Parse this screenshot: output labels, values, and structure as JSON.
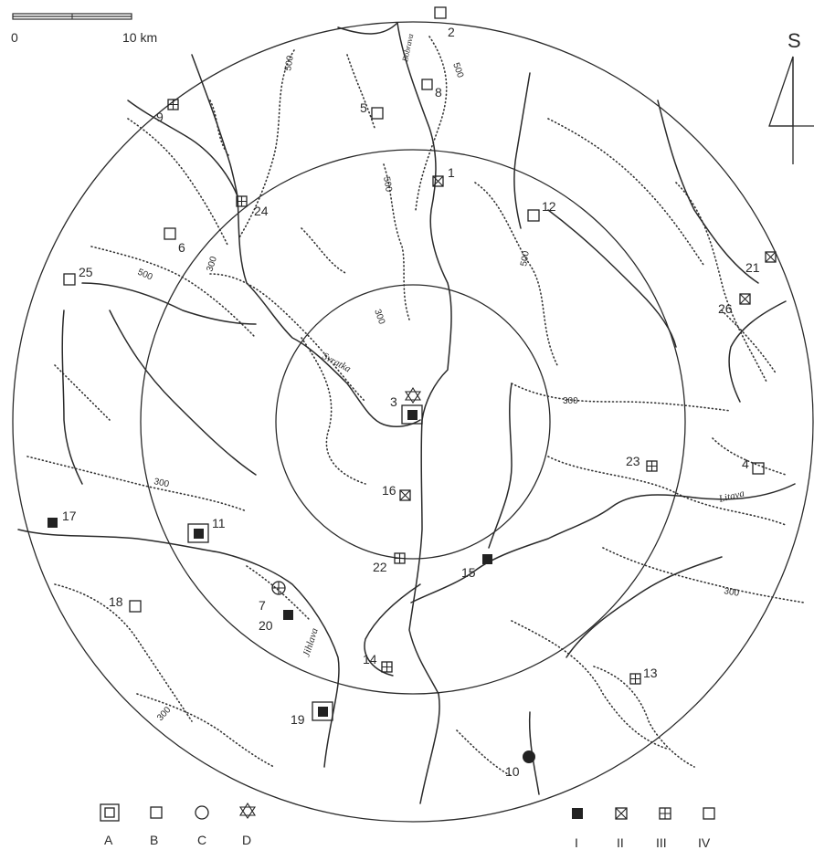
{
  "scale": {
    "zero_label": "0",
    "end_label": "10 km"
  },
  "north_label": "S",
  "rivers": {
    "svratka": "Svratka",
    "jihlava": "Jihlava",
    "litava": "Litava",
    "bobrava": "Bobrava"
  },
  "contour_labels": [
    "500",
    "500",
    "500",
    "500",
    "300",
    "500",
    "300",
    "300",
    "300",
    "300",
    "300"
  ],
  "sites": [
    {
      "num": "1",
      "cat": "II"
    },
    {
      "num": "2",
      "cat": "IV"
    },
    {
      "num": "3",
      "cat": "I",
      "type": "A",
      "extra": "D"
    },
    {
      "num": "4",
      "cat": "IV"
    },
    {
      "num": "5",
      "cat": "IV"
    },
    {
      "num": "6",
      "cat": "IV"
    },
    {
      "num": "7",
      "cat": "III",
      "type": "C"
    },
    {
      "num": "8",
      "cat": "IV"
    },
    {
      "num": "9",
      "cat": "III"
    },
    {
      "num": "10",
      "cat": "dot"
    },
    {
      "num": "11",
      "cat": "I",
      "type": "A"
    },
    {
      "num": "12",
      "cat": "IV"
    },
    {
      "num": "13",
      "cat": "III"
    },
    {
      "num": "14",
      "cat": "III"
    },
    {
      "num": "15",
      "cat": "I"
    },
    {
      "num": "16",
      "cat": "II"
    },
    {
      "num": "17",
      "cat": "I"
    },
    {
      "num": "18",
      "cat": "IV"
    },
    {
      "num": "19",
      "cat": "I",
      "type": "A"
    },
    {
      "num": "20",
      "cat": "I"
    },
    {
      "num": "21",
      "cat": "II"
    },
    {
      "num": "22",
      "cat": "III"
    },
    {
      "num": "23",
      "cat": "III"
    },
    {
      "num": "24",
      "cat": "III"
    },
    {
      "num": "25",
      "cat": "IV"
    },
    {
      "num": "26",
      "cat": "II"
    }
  ],
  "legend": {
    "types": [
      "A",
      "B",
      "C",
      "D"
    ],
    "categories": [
      "I",
      "II",
      "III",
      "IV"
    ]
  }
}
